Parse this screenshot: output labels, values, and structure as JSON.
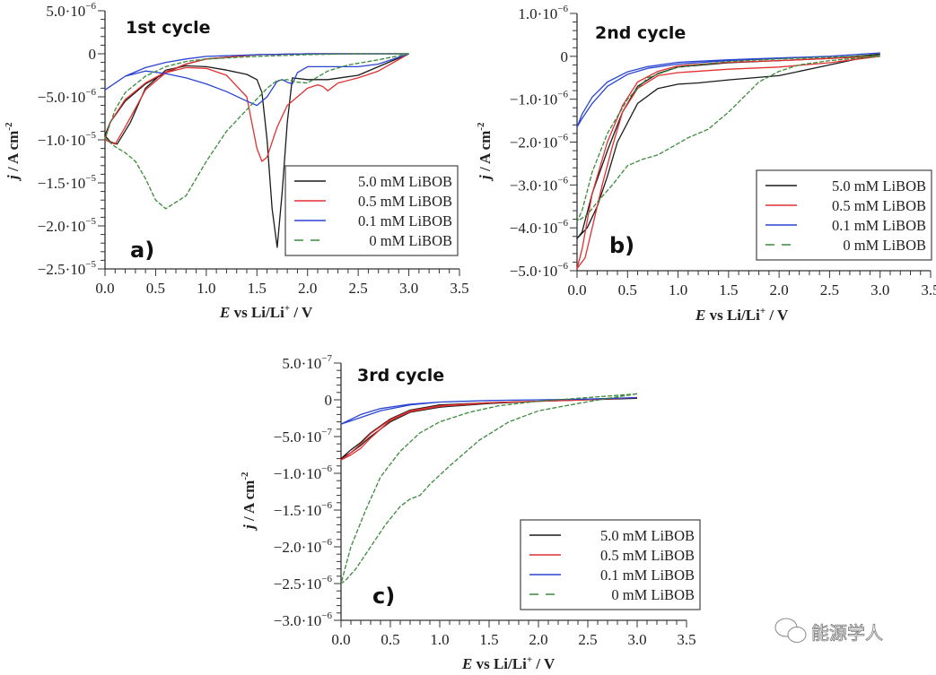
{
  "watermark": {
    "text": "能源学人",
    "icon": "wechat-icon"
  },
  "legend_colors": {
    "5.0 mM LiBOB": "#1a1a1a",
    "0.5 mM LiBOB": "#e03030",
    "0.1 mM LiBOB": "#2a44d0",
    "0 mM LiBOB": "#3a8a3a"
  },
  "chart_data": [
    {
      "type": "line",
      "panel_label": "a)",
      "title": "1st cycle",
      "xlabel": "E vs Li/Li⁺ / V",
      "ylabel": "j / A cm⁻²",
      "xlim": [
        0,
        3.5
      ],
      "ylim": [
        -2.5e-05,
        5e-06
      ],
      "xticks": [
        "0.0",
        "0.5",
        "1.0",
        "1.5",
        "2.0",
        "2.5",
        "3.0",
        "3.5"
      ],
      "yticks": [
        {
          "v": 5e-06,
          "m": "5.0",
          "e": "−6"
        },
        {
          "v": 0,
          "m": "0",
          "e": ""
        },
        {
          "v": -5e-06,
          "m": "−5.0",
          "e": "−6"
        },
        {
          "v": -1e-05,
          "m": "−1.0",
          "e": "−5"
        },
        {
          "v": -1.5e-05,
          "m": "−1.5",
          "e": "−5"
        },
        {
          "v": -2e-05,
          "m": "−2.0",
          "e": "−5"
        },
        {
          "v": -2.5e-05,
          "m": "−2.5",
          "e": "−5"
        }
      ],
      "legend": [
        "5.0 mM LiBOB",
        "0.5 mM LiBOB",
        "0.1 mM LiBOB",
        "0 mM LiBOB"
      ],
      "series": [
        {
          "name": "5.0 mM LiBOB",
          "x": [
            3.0,
            2.7,
            2.5,
            2.2,
            2.0,
            1.85,
            1.8,
            1.75,
            1.7,
            1.65,
            1.6,
            1.55,
            1.5,
            1.4,
            1.2,
            1.0,
            0.8,
            0.6,
            0.4,
            0.25,
            0.12,
            0.05,
            0.0,
            0.05,
            0.2,
            0.4,
            0.6,
            0.8,
            1.0,
            1.5,
            2.0,
            2.5,
            3.0
          ],
          "y": [
            0,
            -1.5e-06,
            -2.5e-06,
            -3e-06,
            -3e-06,
            -2.8e-06,
            -8e-06,
            -1.6e-05,
            -2.25e-05,
            -1.8e-05,
            -1e-05,
            -4.5e-06,
            -3e-06,
            -2.4e-06,
            -1.9e-06,
            -1.5e-06,
            -1.4e-06,
            -1.9e-06,
            -4e-06,
            -8e-06,
            -1.05e-05,
            -1.02e-05,
            -9.5e-06,
            -8e-06,
            -5.5e-06,
            -3.5e-06,
            -2.2e-06,
            -1.2e-06,
            -6e-07,
            -1e-07,
            0,
            0,
            0
          ]
        },
        {
          "name": "0.5 mM LiBOB",
          "x": [
            3.0,
            2.7,
            2.5,
            2.3,
            2.2,
            2.15,
            2.1,
            2.0,
            1.8,
            1.7,
            1.6,
            1.55,
            1.5,
            1.45,
            1.4,
            1.2,
            1.0,
            0.8,
            0.6,
            0.4,
            0.2,
            0.1,
            0.0,
            0.05,
            0.2,
            0.4,
            0.6,
            0.8,
            1.0,
            1.5,
            2.0,
            2.5,
            3.0
          ],
          "y": [
            0,
            -2e-06,
            -2.8e-06,
            -3.4e-06,
            -4.3e-06,
            -3.8e-06,
            -3.6e-06,
            -4e-06,
            -6e-06,
            -8.5e-06,
            -1.2e-05,
            -1.25e-05,
            -1.1e-05,
            -8e-06,
            -5e-06,
            -2.5e-06,
            -1.7e-06,
            -1.6e-06,
            -2.2e-06,
            -4.2e-06,
            -8.5e-06,
            -1.05e-05,
            -1e-05,
            -8e-06,
            -5.3e-06,
            -3.4e-06,
            -2.1e-06,
            -1.2e-06,
            -6e-07,
            -1e-07,
            0,
            0,
            0
          ]
        },
        {
          "name": "0.1 mM LiBOB",
          "x": [
            3.0,
            2.7,
            2.5,
            2.3,
            2.0,
            1.9,
            1.85,
            1.8,
            1.75,
            1.7,
            1.6,
            1.5,
            1.4,
            1.2,
            1.0,
            0.8,
            0.6,
            0.4,
            0.2,
            0.0,
            0.2,
            0.4,
            0.6,
            0.8,
            1.0,
            1.5,
            2.0,
            2.5,
            3.0
          ],
          "y": [
            0,
            -1.2e-06,
            -1.5e-06,
            -1.5e-06,
            -1.5e-06,
            -2.2e-06,
            -3.5e-06,
            -3.3e-06,
            -3e-06,
            -3.2e-06,
            -5e-06,
            -6e-06,
            -5.5e-06,
            -4.4e-06,
            -3.5e-06,
            -2.8e-06,
            -2.3e-06,
            -2e-06,
            -2.6e-06,
            -4.2e-06,
            -2.6e-06,
            -1.6e-06,
            -1e-06,
            -6e-07,
            -3e-07,
            -1e-07,
            0,
            0,
            0
          ]
        },
        {
          "name": "0 mM LiBOB",
          "x": [
            3.0,
            2.7,
            2.4,
            2.2,
            2.0,
            1.9,
            1.8,
            1.7,
            1.6,
            1.4,
            1.2,
            1.0,
            0.8,
            0.6,
            0.5,
            0.4,
            0.3,
            0.2,
            0.1,
            0.0,
            0.1,
            0.2,
            0.4,
            0.6,
            0.8,
            1.0,
            1.5,
            2.0,
            2.5,
            3.0
          ],
          "y": [
            0,
            -7e-07,
            -1.3e-06,
            -2e-06,
            -3.4e-06,
            -3.3e-06,
            -3e-06,
            -3.1e-06,
            -4e-06,
            -6.5e-06,
            -9e-06,
            -1.25e-05,
            -1.65e-05,
            -1.8e-05,
            -1.7e-05,
            -1.45e-05,
            -1.25e-05,
            -1.15e-05,
            -1.08e-05,
            -9.8e-06,
            -6.5e-06,
            -4.5e-06,
            -2.6e-06,
            -1.5e-06,
            -9e-07,
            -6e-07,
            -3e-07,
            -1e-07,
            0,
            0
          ]
        }
      ]
    },
    {
      "type": "line",
      "panel_label": "b)",
      "title": "2nd cycle",
      "xlabel": "E vs Li/Li⁺ / V",
      "ylabel": "j / A cm⁻²",
      "xlim": [
        0,
        3.5
      ],
      "ylim": [
        -5e-06,
        1e-06
      ],
      "xticks": [
        "0.0",
        "0.5",
        "1.0",
        "1.5",
        "2.0",
        "2.5",
        "3.0",
        "3.5"
      ],
      "yticks": [
        {
          "v": 1e-06,
          "m": "1.0",
          "e": "−6"
        },
        {
          "v": 0,
          "m": "0",
          "e": ""
        },
        {
          "v": -1e-06,
          "m": "−1.0",
          "e": "−6"
        },
        {
          "v": -2e-06,
          "m": "−2.0",
          "e": "−6"
        },
        {
          "v": -3e-06,
          "m": "−3.0",
          "e": "−6"
        },
        {
          "v": -4e-06,
          "m": "−4.0",
          "e": "−6"
        },
        {
          "v": -5e-06,
          "m": "−5.0",
          "e": "−6"
        }
      ],
      "legend": [
        "5.0 mM LiBOB",
        "0.5 mM LiBOB",
        "0.1 mM LiBOB",
        "0 mM LiBOB"
      ],
      "series": [
        {
          "name": "5.0 mM LiBOB",
          "x": [
            3.0,
            2.5,
            2.0,
            1.5,
            1.2,
            1.0,
            0.8,
            0.6,
            0.4,
            0.3,
            0.2,
            0.1,
            0.0,
            0.05,
            0.15,
            0.3,
            0.45,
            0.6,
            0.8,
            1.0,
            1.5,
            2.0,
            2.5,
            3.0
          ],
          "y": [
            5e-08,
            -2e-07,
            -4.5e-07,
            -5.5e-07,
            -6.2e-07,
            -6.5e-07,
            -7.5e-07,
            -1.1e-06,
            -2e-06,
            -2.8e-06,
            -3.5e-06,
            -4e-06,
            -4.25e-06,
            -4.1e-06,
            -3.2e-06,
            -2.2e-06,
            -1.3e-06,
            -7e-07,
            -4e-07,
            -2.5e-07,
            -1.5e-07,
            -1e-07,
            -5e-08,
            5e-08
          ]
        },
        {
          "name": "0.5 mM LiBOB",
          "x": [
            3.0,
            2.5,
            2.0,
            1.5,
            1.0,
            0.8,
            0.6,
            0.45,
            0.35,
            0.25,
            0.15,
            0.08,
            0.0,
            0.05,
            0.15,
            0.3,
            0.45,
            0.6,
            0.8,
            1.0,
            1.5,
            2.0,
            2.5,
            3.0
          ],
          "y": [
            0,
            -1.5e-07,
            -2.5e-07,
            -3e-07,
            -3.8e-07,
            -4.5e-07,
            -7.5e-07,
            -1.3e-06,
            -2.1e-06,
            -3e-06,
            -4e-06,
            -4.7e-06,
            -4.95e-06,
            -4.5e-06,
            -3.2e-06,
            -2e-06,
            -1.15e-06,
            -6e-07,
            -3.5e-07,
            -2.2e-07,
            -1.4e-07,
            -1e-07,
            -5e-08,
            0
          ]
        },
        {
          "name": "0.1 mM LiBOB",
          "x": [
            3.0,
            2.5,
            2.0,
            1.5,
            1.0,
            0.7,
            0.5,
            0.3,
            0.15,
            0.05,
            0.0,
            0.05,
            0.15,
            0.3,
            0.5,
            0.7,
            1.0,
            1.5,
            2.0,
            2.5,
            3.0
          ],
          "y": [
            8e-08,
            0,
            -5e-08,
            -1e-07,
            -1.8e-07,
            -2.8e-07,
            -4.2e-07,
            -7e-07,
            -1.1e-06,
            -1.45e-06,
            -1.65e-06,
            -1.35e-06,
            -9.5e-07,
            -6e-07,
            -3.6e-07,
            -2.4e-07,
            -1.4e-07,
            -8e-08,
            -4e-08,
            0,
            8e-08
          ]
        },
        {
          "name": "0 mM LiBOB",
          "x": [
            3.0,
            2.5,
            2.2,
            2.0,
            1.8,
            1.5,
            1.3,
            1.1,
            0.95,
            0.8,
            0.65,
            0.5,
            0.35,
            0.2,
            0.1,
            0.0,
            0.05,
            0.15,
            0.3,
            0.5,
            0.7,
            1.0,
            1.5,
            2.0,
            2.5,
            3.0
          ],
          "y": [
            0,
            -1e-07,
            -2e-07,
            -3.5e-07,
            -6e-07,
            -1.3e-06,
            -1.7e-06,
            -1.9e-06,
            -2.1e-06,
            -2.3e-06,
            -2.4e-06,
            -2.55e-06,
            -3e-06,
            -3.4e-06,
            -3.7e-06,
            -3.85e-06,
            -3.6e-06,
            -2.7e-06,
            -1.8e-06,
            -1e-06,
            -5e-07,
            -2.5e-07,
            -1.2e-07,
            -6e-08,
            -2e-08,
            2e-08
          ]
        }
      ]
    },
    {
      "type": "line",
      "panel_label": "c)",
      "title": "3rd cycle",
      "xlabel": "E vs Li/Li⁺ / V",
      "ylabel": "j / A cm⁻²",
      "xlim": [
        0,
        3.5
      ],
      "ylim": [
        -3e-06,
        5e-07
      ],
      "xticks": [
        "0.0",
        "0.5",
        "1.0",
        "1.5",
        "2.0",
        "2.5",
        "3.0",
        "3.5"
      ],
      "yticks": [
        {
          "v": 5e-07,
          "m": "5.0",
          "e": "−7"
        },
        {
          "v": 0,
          "m": "0",
          "e": ""
        },
        {
          "v": -5e-07,
          "m": "−5.0",
          "e": "−7"
        },
        {
          "v": -1e-06,
          "m": "−1.0",
          "e": "−6"
        },
        {
          "v": -1.5e-06,
          "m": "−1.5",
          "e": "−6"
        },
        {
          "v": -2e-06,
          "m": "−2.0",
          "e": "−6"
        },
        {
          "v": -2.5e-06,
          "m": "−2.5",
          "e": "−6"
        },
        {
          "v": -3e-06,
          "m": "−3.0",
          "e": "−6"
        }
      ],
      "legend": [
        "5.0 mM LiBOB",
        "0.5 mM LiBOB",
        "0.1 mM LiBOB",
        "0 mM LiBOB"
      ],
      "series": [
        {
          "name": "5.0 mM LiBOB",
          "x": [
            3.0,
            2.5,
            2.0,
            1.5,
            1.0,
            0.7,
            0.5,
            0.3,
            0.2,
            0.1,
            0.0,
            0.1,
            0.2,
            0.3,
            0.5,
            0.7,
            1.0,
            1.5,
            2.0,
            2.5,
            3.0
          ],
          "y": [
            2e-08,
            0,
            -2e-08,
            -5e-08,
            -1e-07,
            -1.7e-07,
            -3e-07,
            -5e-07,
            -6.2e-07,
            -7.2e-07,
            -8e-07,
            -6.8e-07,
            -5.8e-07,
            -4.5e-07,
            -2.6e-07,
            -1.4e-07,
            -7e-08,
            -4e-08,
            -2e-08,
            0,
            2e-08
          ]
        },
        {
          "name": "0.5 mM LiBOB",
          "x": [
            3.0,
            2.5,
            2.0,
            1.5,
            1.0,
            0.7,
            0.5,
            0.3,
            0.2,
            0.1,
            0.0,
            0.1,
            0.2,
            0.3,
            0.5,
            0.7,
            1.0,
            1.5,
            2.0,
            2.5,
            3.0
          ],
          "y": [
            3e-08,
            0,
            -2e-08,
            -4e-08,
            -9e-08,
            -1.6e-07,
            -2.8e-07,
            -5.2e-07,
            -6.6e-07,
            -7.5e-07,
            -8.2e-07,
            -7.2e-07,
            -6e-07,
            -4.6e-07,
            -2.7e-07,
            -1.5e-07,
            -8e-08,
            -4e-08,
            -2e-08,
            0,
            3e-08
          ]
        },
        {
          "name": "0.1 mM LiBOB",
          "x": [
            3.0,
            2.5,
            2.0,
            1.5,
            1.0,
            0.7,
            0.4,
            0.2,
            0.0,
            0.2,
            0.4,
            0.7,
            1.0,
            1.5,
            2.0,
            2.5,
            3.0
          ],
          "y": [
            3e-08,
            1e-08,
            0,
            -1e-08,
            -3e-08,
            -7e-08,
            -1.5e-07,
            -2.4e-07,
            -3.3e-07,
            -2e-07,
            -1.2e-07,
            -6e-08,
            -3e-08,
            -1e-08,
            0,
            1e-08,
            3e-08
          ]
        },
        {
          "name": "0 mM LiBOB",
          "x": [
            3.0,
            2.7,
            2.4,
            2.0,
            1.7,
            1.4,
            1.1,
            0.9,
            0.8,
            0.7,
            0.6,
            0.45,
            0.3,
            0.15,
            0.05,
            0.0,
            0.1,
            0.25,
            0.4,
            0.6,
            0.8,
            1.0,
            1.3,
            1.6,
            2.0,
            2.5,
            3.0
          ],
          "y": [
            8e-08,
            2e-08,
            -5e-08,
            -1.5e-07,
            -3e-07,
            -5.5e-07,
            -9e-07,
            -1.15e-06,
            -1.3e-06,
            -1.35e-06,
            -1.45e-06,
            -1.7e-06,
            -2e-06,
            -2.3e-06,
            -2.45e-06,
            -2.5e-06,
            -2e-06,
            -1.5e-06,
            -1.05e-06,
            -7e-07,
            -4.5e-07,
            -3e-07,
            -1.7e-07,
            -8e-08,
            -2e-08,
            3e-08,
            8e-08
          ]
        }
      ]
    }
  ]
}
